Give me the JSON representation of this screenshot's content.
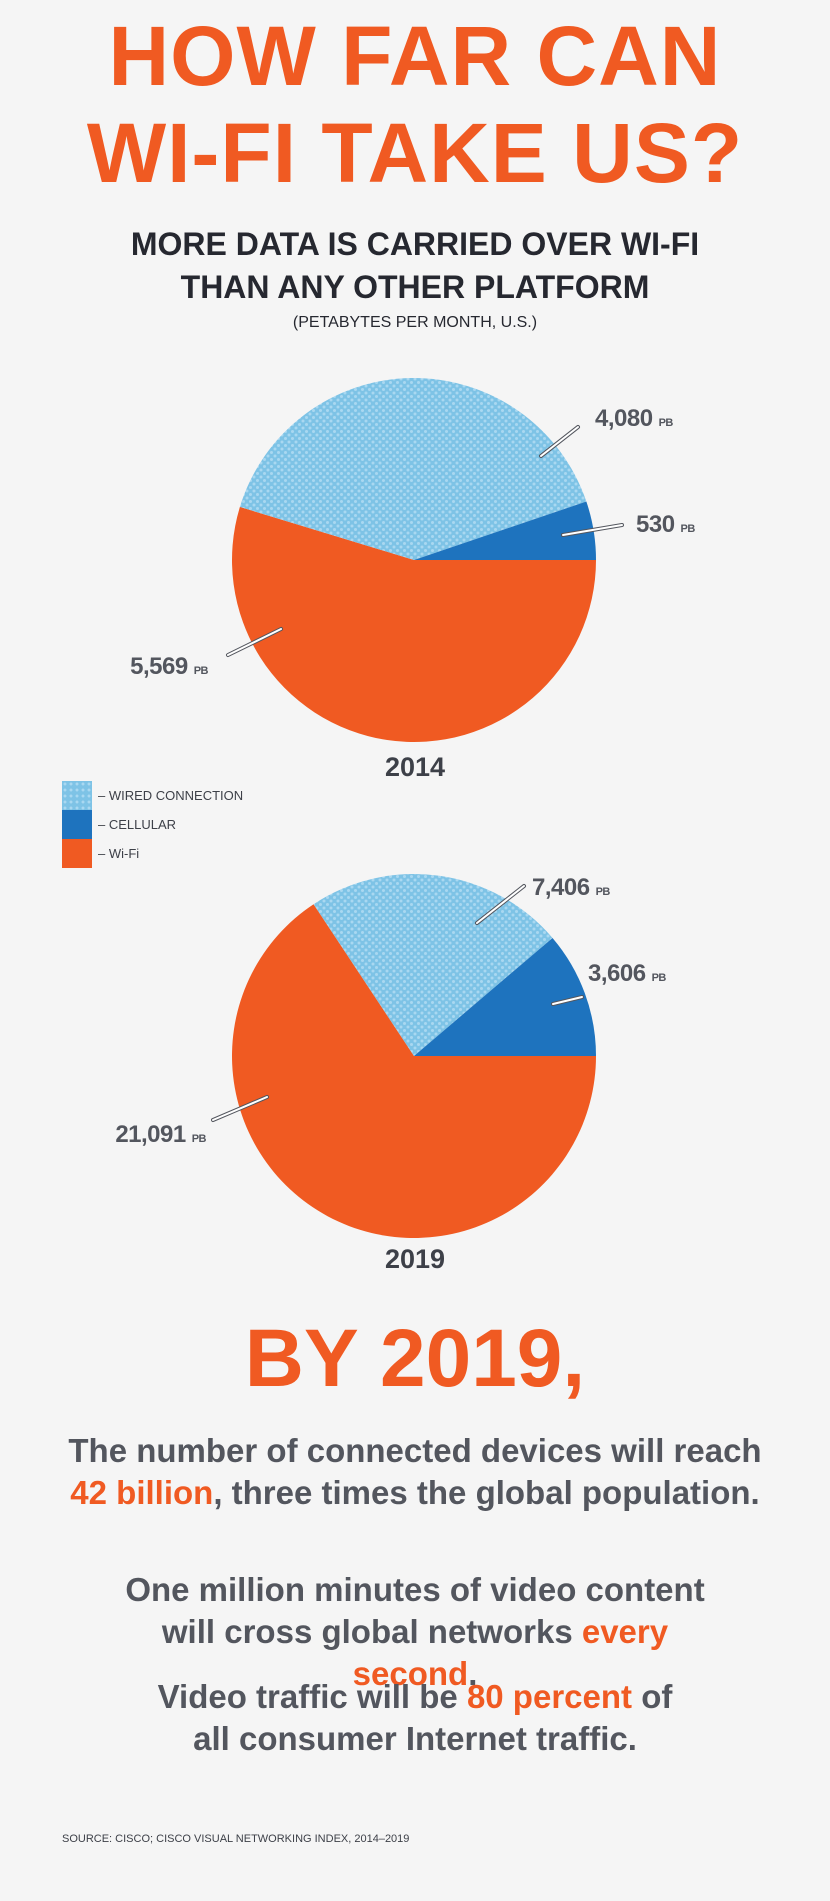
{
  "title": {
    "line1": "HOW FAR CAN",
    "line2": "WI-FI TAKE US?"
  },
  "subtitle": {
    "line1": "MORE DATA IS CARRIED OVER WI-FI",
    "line2": "THAN ANY OTHER PLATFORM",
    "units": "(PETABYTES PER MONTH, U.S.)"
  },
  "colors": {
    "wired": "#7ec3e6",
    "wired_dots": "#a9d8f1",
    "cellular": "#1e73be",
    "wifi": "#f05a22"
  },
  "chart_data": [
    {
      "type": "pie",
      "title": "2014",
      "unit": "PB",
      "slices": [
        {
          "name": "WIRED CONNECTION",
          "value": 4080,
          "label": "4,080"
        },
        {
          "name": "CELLULAR",
          "value": 530,
          "label": "530"
        },
        {
          "name": "Wi-Fi",
          "value": 5569,
          "label": "5,569"
        }
      ]
    },
    {
      "type": "pie",
      "title": "2019",
      "unit": "PB",
      "slices": [
        {
          "name": "WIRED CONNECTION",
          "value": 7406,
          "label": "7,406"
        },
        {
          "name": "CELLULAR",
          "value": 3606,
          "label": "3,606"
        },
        {
          "name": "Wi-Fi",
          "value": 21091,
          "label": "21,091"
        }
      ]
    }
  ],
  "legend": [
    {
      "key": "wired",
      "label": "– WIRED CONNECTION"
    },
    {
      "key": "cellular",
      "label": "– CELLULAR"
    },
    {
      "key": "wifi",
      "label": "– Wi-Fi"
    }
  ],
  "by_2019": {
    "heading": "BY 2019,"
  },
  "stats": [
    {
      "before": "The number of connected devices will reach",
      "highlight": "42 billion",
      "after": ", three times the global population."
    },
    {
      "before": "One million minutes of video content will cross global networks ",
      "highlight": "every second",
      "after": "."
    },
    {
      "before": "Video traffic will be ",
      "highlight": "80 percent",
      "after": " of all consumer Internet traffic."
    }
  ],
  "source": "SOURCE: CISCO; CISCO VISUAL NETWORKING INDEX, 2014–2019"
}
